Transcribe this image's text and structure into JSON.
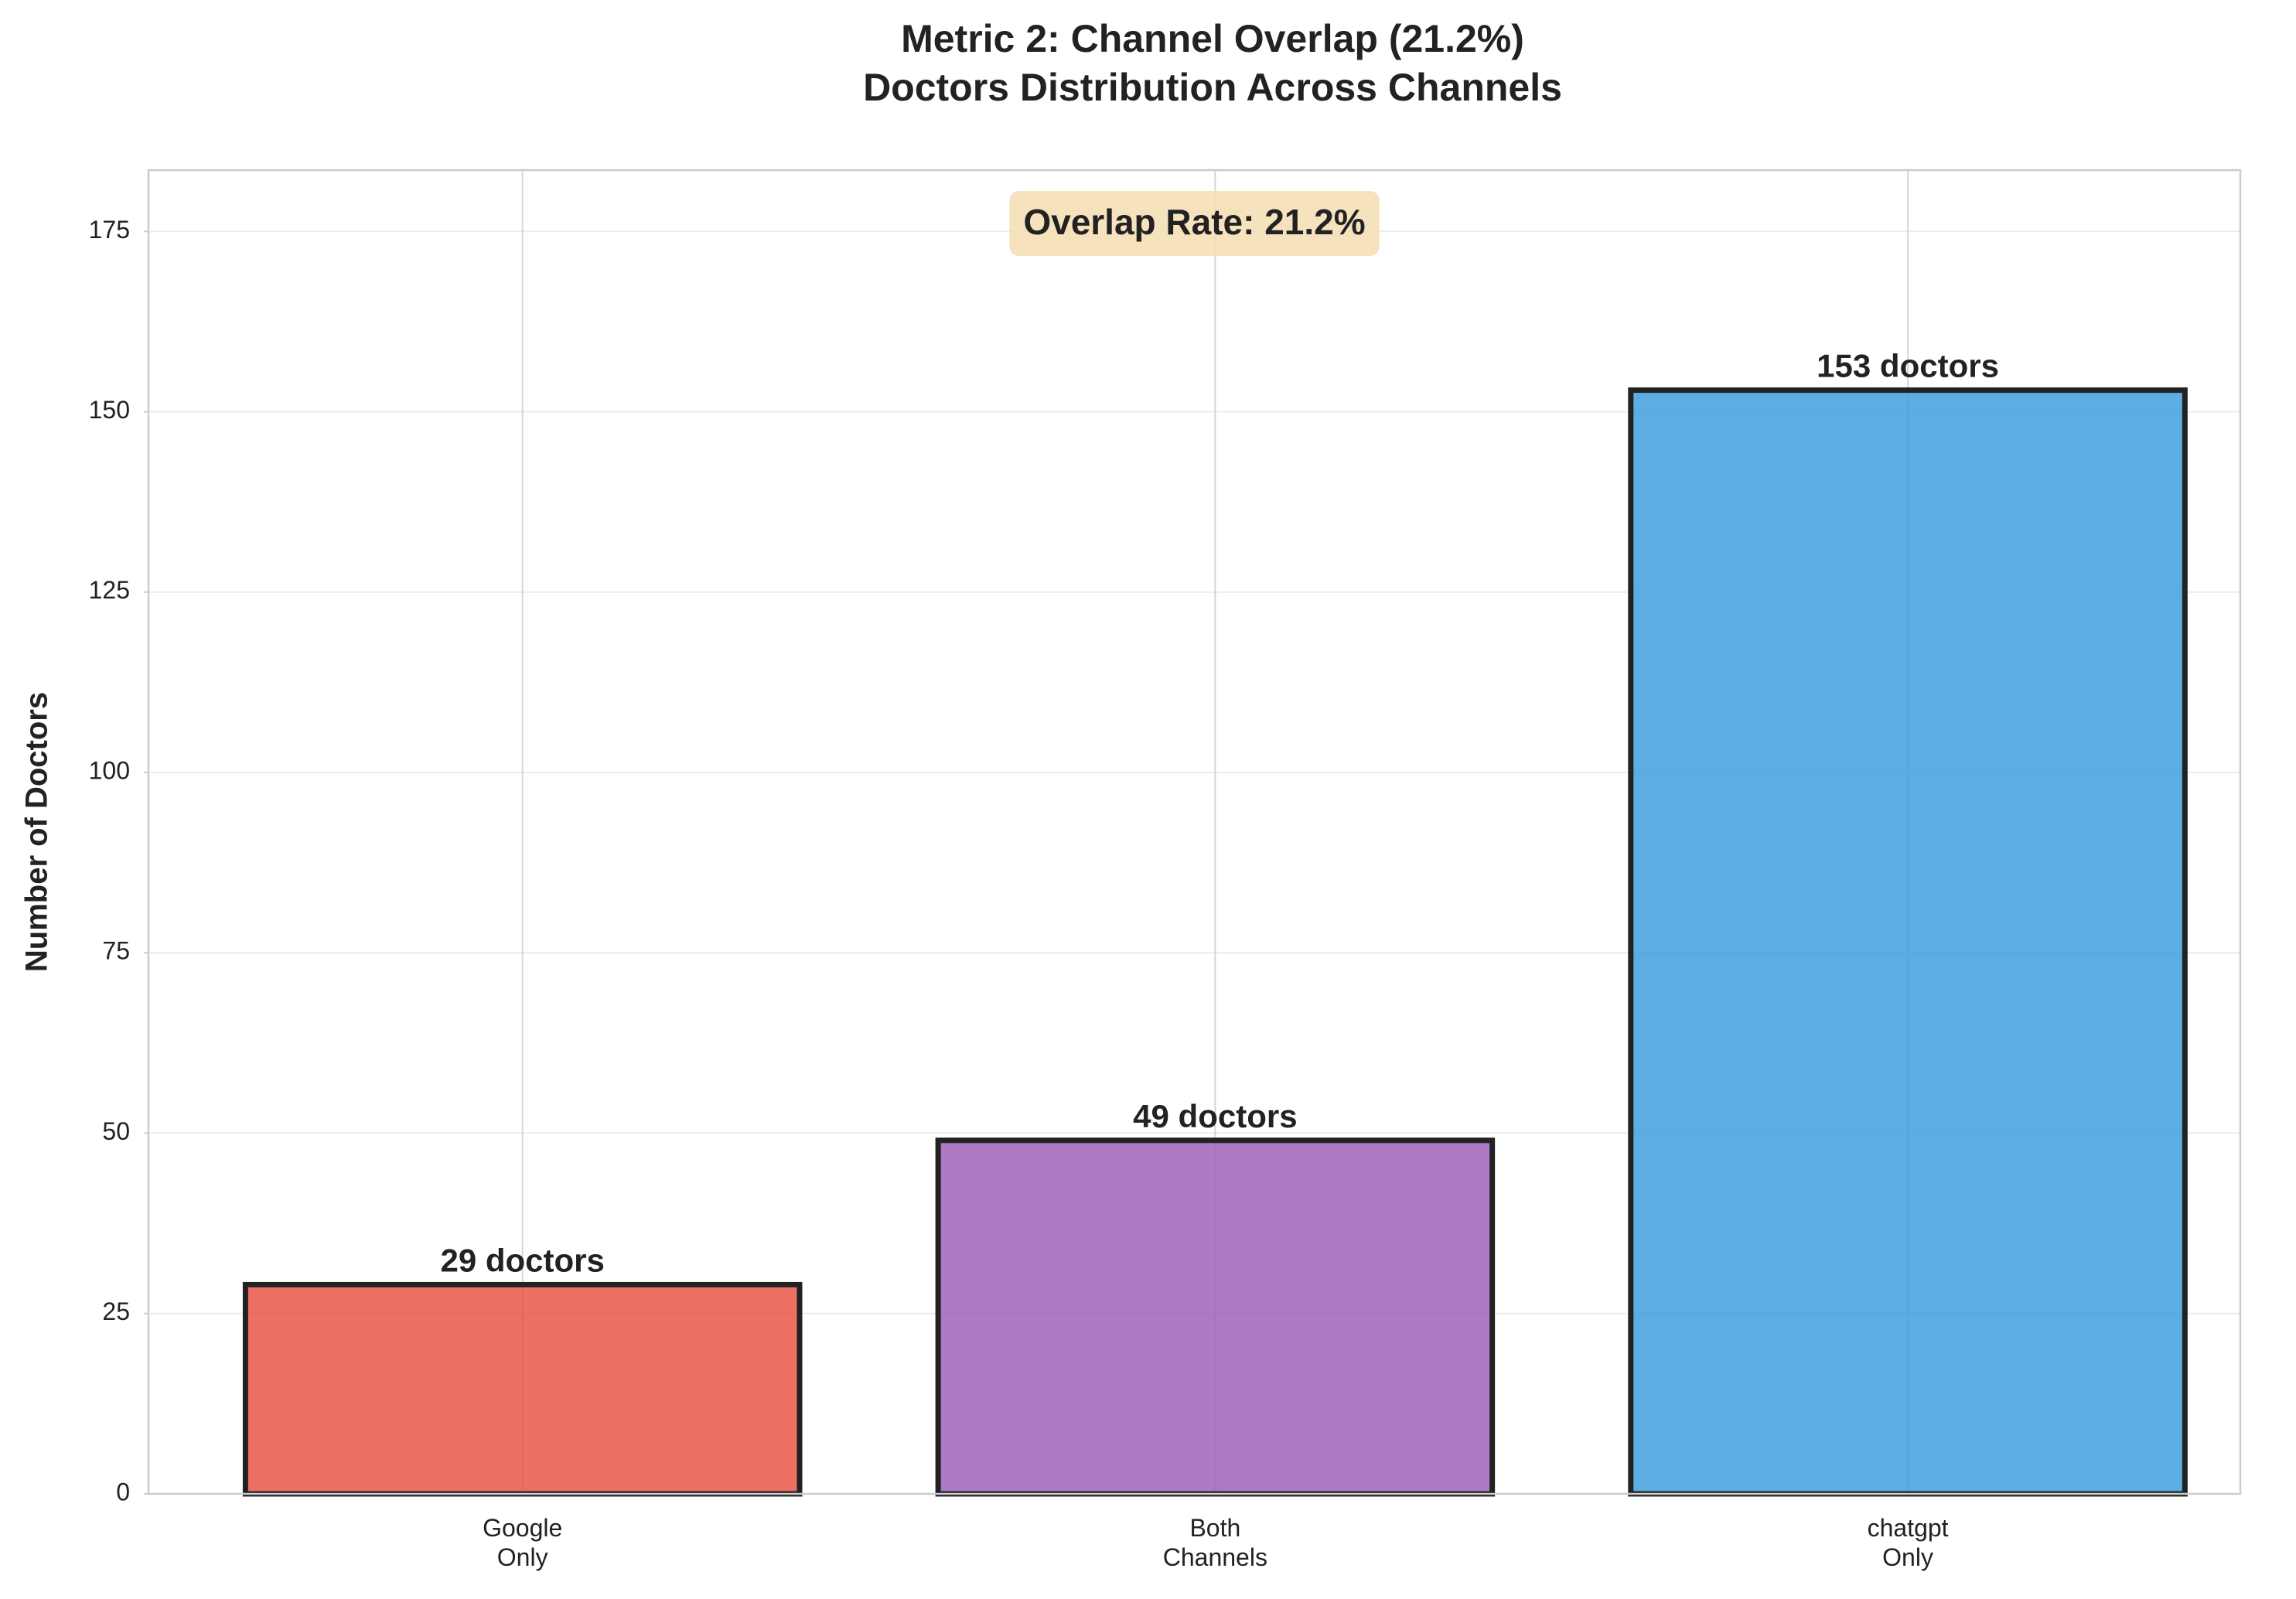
{
  "chart_data": {
    "type": "bar",
    "title": "Metric 2: Channel Overlap (21.2%)",
    "subtitle": "Doctors Distribution Across Channels",
    "y_label": "Number of Doctors",
    "annotation": "Overlap Rate: 21.2%",
    "categories": [
      "Google\nOnly",
      "Both\nChannels",
      "chatgpt\nOnly"
    ],
    "values": [
      29,
      49,
      153
    ],
    "value_labels": [
      "29 doctors",
      "49 doctors",
      "153 doctors"
    ],
    "colors": [
      "#e74c3c",
      "#9b59b6",
      "#3498db"
    ],
    "ylim": [
      0,
      183.5
    ],
    "yticks": [
      0,
      25,
      50,
      75,
      100,
      125,
      150,
      175
    ],
    "grid": true
  }
}
